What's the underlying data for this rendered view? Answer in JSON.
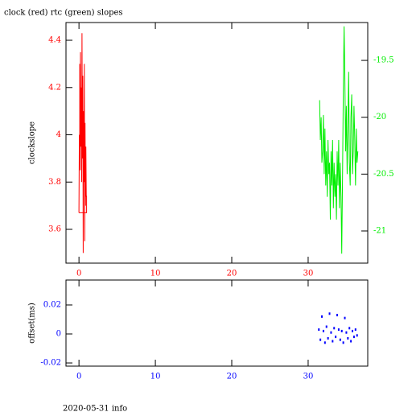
{
  "chart_data": [
    {
      "type": "line",
      "title": "clock (red) rtc (green) slopes",
      "ylabel": "clockslope",
      "xlim": [
        -1.7,
        37.8
      ],
      "xticks": [
        0,
        10,
        20,
        30
      ],
      "ylim": [
        3.457,
        4.475
      ],
      "yticks": [
        4.4,
        4.2,
        4,
        3.8,
        3.6
      ],
      "y2lim": [
        -21.283,
        -19.167
      ],
      "y2ticks": [
        -19.5,
        -20,
        -20.5,
        -21
      ],
      "series": [
        {
          "color": "#ff0000",
          "x": [
            0.0,
            0.05,
            0.1,
            0.1,
            0.15,
            0.2,
            0.25,
            0.3,
            0.35,
            0.4,
            0.45,
            0.5,
            0.55,
            0.6,
            0.65,
            0.7,
            0.75,
            0.8,
            0.85,
            0.9,
            0.95,
            1.0,
            1.0,
            0.0
          ],
          "values": [
            3.67,
            4.0,
            3.9,
            4.3,
            3.85,
            4.35,
            3.95,
            4.2,
            3.8,
            4.43,
            3.9,
            4.25,
            3.5,
            4.1,
            3.8,
            4.3,
            3.55,
            4.05,
            3.7,
            3.95,
            3.74,
            3.74,
            3.67,
            3.67
          ]
        },
        {
          "color": "#00ee00",
          "axis": "y2",
          "x": [
            31.5,
            31.6,
            31.7,
            31.8,
            31.9,
            32.0,
            32.1,
            32.2,
            32.3,
            32.4,
            32.5,
            32.6,
            32.7,
            32.8,
            32.9,
            33.0,
            33.1,
            33.2,
            33.3,
            33.4,
            33.5,
            33.6,
            33.7,
            33.8,
            33.9,
            34.0,
            34.1,
            34.2,
            34.3,
            34.4,
            34.5,
            34.6,
            34.7,
            34.8,
            34.9,
            35.0,
            35.1,
            35.2,
            35.3,
            35.4,
            35.5,
            35.6,
            35.7,
            35.8,
            35.9,
            36.0,
            36.1,
            36.2,
            36.3,
            36.4,
            36.5
          ],
          "values": [
            -19.85,
            -20.2,
            -20.0,
            -20.4,
            -20.3,
            -19.98,
            -20.5,
            -20.1,
            -20.6,
            -20.3,
            -20.7,
            -20.2,
            -20.5,
            -20.4,
            -20.9,
            -20.3,
            -20.6,
            -20.2,
            -20.8,
            -20.4,
            -20.7,
            -20.5,
            -20.9,
            -20.3,
            -20.6,
            -20.2,
            -20.8,
            -20.4,
            -20.7,
            -21.2,
            -20.5,
            -19.8,
            -19.2,
            -19.6,
            -20.3,
            -19.9,
            -20.5,
            -20.1,
            -19.6,
            -20.4,
            -20.6,
            -20.0,
            -19.8,
            -20.5,
            -20.3,
            -19.9,
            -20.2,
            -20.6,
            -20.1,
            -20.4,
            -20.3
          ]
        }
      ]
    },
    {
      "type": "scatter",
      "ylabel": "offset(ms)",
      "xlim": [
        -1.7,
        37.8
      ],
      "xticks": [
        0,
        10,
        20,
        30
      ],
      "ylim": [
        -0.0222,
        0.0372
      ],
      "yticks": [
        0.02,
        0,
        -0.02
      ],
      "series": [
        {
          "color": "#0000ff",
          "x": [
            31.4,
            31.6,
            31.8,
            32.0,
            32.2,
            32.4,
            32.6,
            32.8,
            33.0,
            33.2,
            33.4,
            33.6,
            33.8,
            34.0,
            34.2,
            34.4,
            34.6,
            34.8,
            35.0,
            35.2,
            35.4,
            35.6,
            35.8,
            36.0,
            36.2,
            36.4
          ],
          "values": [
            0.003,
            -0.004,
            0.012,
            0.002,
            -0.006,
            0.005,
            -0.003,
            0.014,
            0.001,
            -0.005,
            0.004,
            -0.002,
            0.013,
            0.003,
            -0.004,
            0.002,
            -0.006,
            0.011,
            0.001,
            -0.003,
            0.004,
            -0.005,
            0.002,
            -0.002,
            0.003,
            -0.001
          ]
        }
      ]
    }
  ],
  "footer": "2020-05-31 info"
}
